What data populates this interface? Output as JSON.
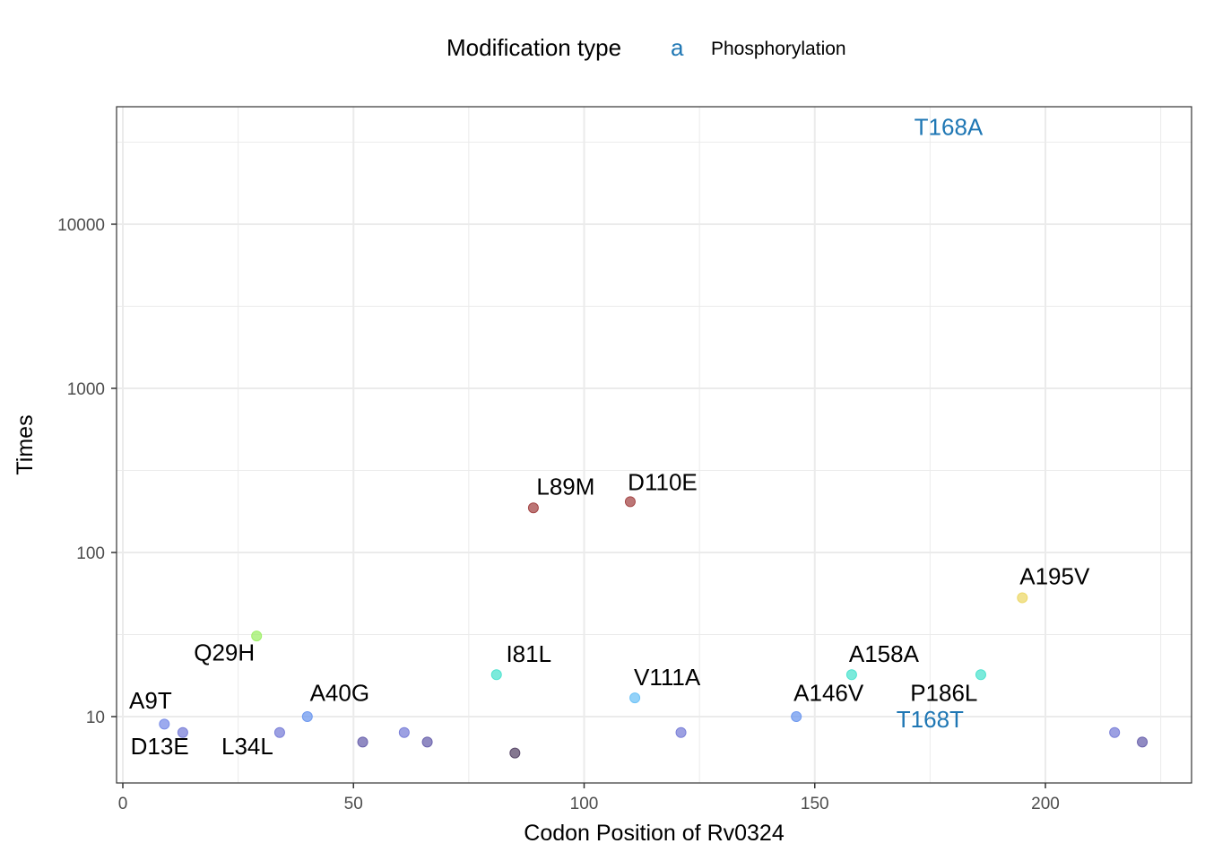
{
  "chart_data": {
    "type": "scatter",
    "title": "",
    "xlabel": "Codon Position of Rv0324",
    "ylabel": "Times",
    "xlim": [
      -1,
      231
    ],
    "ylim_log10": [
      0.6,
      4.7
    ],
    "y_scale": "log10",
    "x_ticks": [
      0,
      50,
      100,
      150,
      200
    ],
    "x_tick_labels": [
      "0",
      "50",
      "100",
      "150",
      "200"
    ],
    "y_ticks": [
      10,
      100,
      1000,
      10000
    ],
    "y_tick_labels": [
      "10",
      "100",
      "1000",
      "10000"
    ],
    "grid": true,
    "legend": {
      "position": "top",
      "title": "Modification type",
      "key_glyph": "a",
      "key_color": "#1f77b4",
      "entries": [
        "Phosphorylation"
      ]
    },
    "points": [
      {
        "x": 9,
        "y": 9,
        "color": "#7b8ee8",
        "label": "A9T"
      },
      {
        "x": 13,
        "y": 8,
        "color": "#7b80d8",
        "label": "D13E"
      },
      {
        "x": 29,
        "y": 31,
        "color": "#9fef6a",
        "label": "Q29H"
      },
      {
        "x": 34,
        "y": 8,
        "color": "#7b80d8",
        "label": "L34L"
      },
      {
        "x": 40,
        "y": 10,
        "color": "#6f99ef",
        "label": "A40G"
      },
      {
        "x": 52,
        "y": 7,
        "color": "#6b63ad",
        "label": ""
      },
      {
        "x": 61,
        "y": 8,
        "color": "#7b80d8",
        "label": ""
      },
      {
        "x": 66,
        "y": 7,
        "color": "#6b63ad",
        "label": ""
      },
      {
        "x": 81,
        "y": 18,
        "color": "#4fe3cf",
        "label": "I81L"
      },
      {
        "x": 85,
        "y": 6,
        "color": "#5b4a6b",
        "label": ""
      },
      {
        "x": 89,
        "y": 187,
        "color": "#a54848",
        "label": "L89M"
      },
      {
        "x": 110,
        "y": 204,
        "color": "#a54848",
        "label": "D110E"
      },
      {
        "x": 111,
        "y": 13,
        "color": "#6fc3f7",
        "label": "V111A"
      },
      {
        "x": 121,
        "y": 8,
        "color": "#7b80d8",
        "label": ""
      },
      {
        "x": 146,
        "y": 10,
        "color": "#6f99ef",
        "label": "A146V"
      },
      {
        "x": 158,
        "y": 18,
        "color": "#4fe3cf",
        "label": "A158A"
      },
      {
        "x": 186,
        "y": 18,
        "color": "#4fe3cf",
        "label": "P186L"
      },
      {
        "x": 195,
        "y": 53,
        "color": "#ecd86a",
        "label": "A195V"
      },
      {
        "x": 215,
        "y": 8,
        "color": "#7b80d8",
        "label": ""
      },
      {
        "x": 221,
        "y": 7,
        "color": "#6b63ad",
        "label": ""
      }
    ],
    "point_labels": [
      {
        "text": "A9T",
        "x": 6,
        "y": 11.2,
        "color": "#000000"
      },
      {
        "text": "D13E",
        "x": 8,
        "y": 5.9,
        "color": "#000000"
      },
      {
        "text": "Q29H",
        "x": 22,
        "y": 22,
        "color": "#000000"
      },
      {
        "text": "L34L",
        "x": 27,
        "y": 5.9,
        "color": "#000000"
      },
      {
        "text": "A40G",
        "x": 47,
        "y": 12.5,
        "color": "#000000"
      },
      {
        "text": "I81L",
        "x": 88,
        "y": 21.5,
        "color": "#000000"
      },
      {
        "text": "L89M",
        "x": 96,
        "y": 225,
        "color": "#000000"
      },
      {
        "text": "D110E",
        "x": 117,
        "y": 240,
        "color": "#000000"
      },
      {
        "text": "V111A",
        "x": 118,
        "y": 15.5,
        "color": "#000000"
      },
      {
        "text": "A146V",
        "x": 153,
        "y": 12.5,
        "color": "#000000"
      },
      {
        "text": "A158A",
        "x": 165,
        "y": 21.5,
        "color": "#000000"
      },
      {
        "text": "P186L",
        "x": 178,
        "y": 12.5,
        "color": "#000000"
      },
      {
        "text": "A195V",
        "x": 202,
        "y": 64,
        "color": "#000000"
      },
      {
        "text": "T168A",
        "x": 179,
        "y": 35000,
        "color": "#1f77b4"
      },
      {
        "text": "T168T",
        "x": 175,
        "y": 8.6,
        "color": "#1f77b4"
      }
    ]
  }
}
